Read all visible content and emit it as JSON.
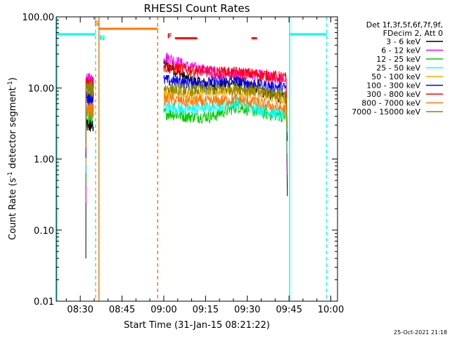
{
  "chart_data": {
    "type": "line",
    "title": "RHESSI Count Rates",
    "xlabel": "Start Time (31-Jan-15 08:21:22)",
    "ylabel": "Count Rate (s",
    "ylabel_exponent": "-1",
    "ylabel_suffix": " detector segment",
    "ylabel_end": ")",
    "yscale": "log",
    "ylim": [
      0.01,
      100
    ],
    "xlim_minutes": [
      21.37,
      122.4
    ],
    "y_tick_labels": [
      "0.01",
      "0.10",
      "1.00",
      "10.00",
      "100.00"
    ],
    "y_tick_values": [
      0.01,
      0.1,
      1,
      10,
      100
    ],
    "x_tick_labels": [
      "08:30",
      "08:45",
      "09:00",
      "09:15",
      "09:30",
      "09:45",
      "10:00"
    ],
    "x_tick_values_minutes": [
      30,
      45,
      60,
      75,
      90,
      105,
      120
    ],
    "legend_header": [
      "Det 1f,3f,5f,6f,7f,9f,",
      "FDecim 2, Att 0"
    ],
    "legend_placement": "right-outside",
    "series": [
      {
        "name": "3 - 6 keV",
        "color": "#000000",
        "level_a": 3.0,
        "level_b": [
          22,
          13,
          11,
          12,
          9,
          7
        ]
      },
      {
        "name": "6 - 12 keV",
        "color": "#ff00ff",
        "level_a": 13.0,
        "level_b": [
          28,
          20,
          17,
          16,
          15,
          13
        ]
      },
      {
        "name": "12 - 25 keV",
        "color": "#00cc00",
        "level_a": 4.0,
        "level_b": [
          4.5,
          4.0,
          4.0,
          5.5,
          4.5,
          4.0
        ]
      },
      {
        "name": "25 - 50 keV",
        "color": "#00ffff",
        "level_a": 5.0,
        "level_b": [
          5.5,
          5.0,
          5.5,
          6.5,
          5.0,
          4.0
        ]
      },
      {
        "name": "50 - 100 keV",
        "color": "#ffaa00",
        "level_a": 9.0,
        "level_b": [
          8.5,
          8.0,
          8.5,
          9.5,
          8.0,
          7.0
        ]
      },
      {
        "name": "100 - 300 keV",
        "color": "#0000ff",
        "level_a": 7.5,
        "level_b": [
          13,
          12,
          12,
          12.5,
          11,
          10
        ]
      },
      {
        "name": "300 - 800 keV",
        "color": "#ff0000",
        "level_a": 12.0,
        "level_b": [
          20,
          18,
          17,
          16.5,
          15.5,
          14
        ]
      },
      {
        "name": "800 - 7000 keV",
        "color": "#ff7700",
        "level_a": 5.0,
        "level_b": [
          7,
          6.5,
          6.5,
          7,
          6,
          5
        ]
      },
      {
        "name": "7000 - 15000 keV",
        "color": "#888800",
        "level_a": 10.0,
        "level_b": [
          10,
          9.5,
          9.5,
          10,
          9,
          8
        ]
      }
    ],
    "segment_a_minutes": [
      32.0,
      34.8
    ],
    "segment_b_minutes": [
      60.0,
      104.0
    ],
    "vertical_lines": [
      {
        "x_minutes": 21.6,
        "color": "#00ffff",
        "style": "solid"
      },
      {
        "x_minutes": 35.5,
        "color": "#00ffff",
        "style": "dashed"
      },
      {
        "x_minutes": 36.7,
        "color": "#ff7700",
        "style": "solid"
      },
      {
        "x_minutes": 57.8,
        "color": "#ff7700",
        "style": "dashed"
      },
      {
        "x_minutes": 105.2,
        "color": "#00ffff",
        "style": "solid"
      },
      {
        "x_minutes": 118.5,
        "color": "#00ffff",
        "style": "dashed"
      }
    ],
    "horizontal_bars": [
      {
        "x_start_minutes": 21.6,
        "x_end_minutes": 35.5,
        "y": 57,
        "color": "#00ffff"
      },
      {
        "x_start_minutes": 36.7,
        "x_end_minutes": 57.8,
        "y": 68,
        "color": "#ff7700"
      },
      {
        "x_start_minutes": 64.0,
        "x_end_minutes": 72.0,
        "y": 50,
        "color": "#ff0000"
      },
      {
        "x_start_minutes": 91.5,
        "x_end_minutes": 93.5,
        "y": 50,
        "color": "#ff0000"
      },
      {
        "x_start_minutes": 105.2,
        "x_end_minutes": 118.5,
        "y": 57,
        "color": "#00ffff"
      }
    ],
    "markers": [
      {
        "label": "S",
        "x_minutes": 35.0,
        "y": 75,
        "color": "#ff7700"
      },
      {
        "label": "N",
        "x_minutes": 36.8,
        "y": 47,
        "color": "#00ffff"
      },
      {
        "label": "F",
        "x_minutes": 61.2,
        "y": 50,
        "color": "#ff0000"
      }
    ]
  },
  "footer_timestamp": "25-Oct-2021 21:18"
}
